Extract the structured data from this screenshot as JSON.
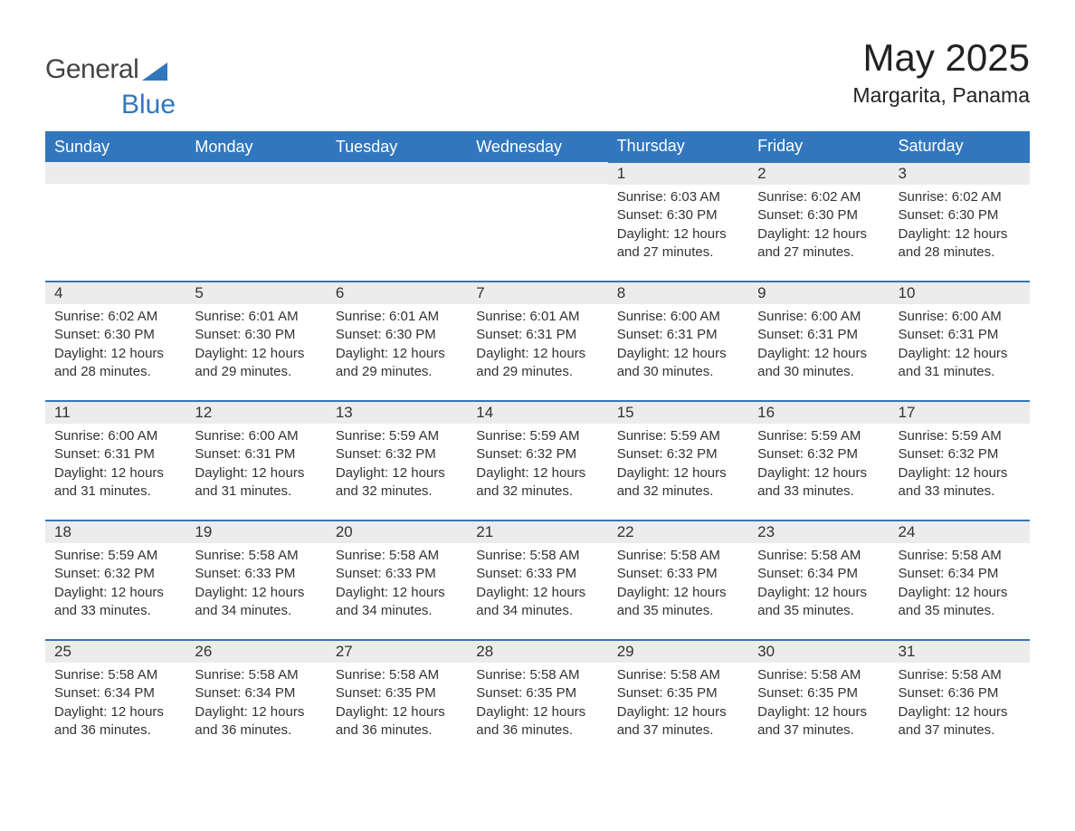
{
  "brand": {
    "text_general": "General",
    "text_blue": "Blue",
    "accent_color": "#3277BD"
  },
  "title": "May 2025",
  "location": "Margarita, Panama",
  "columns": [
    "Sunday",
    "Monday",
    "Tuesday",
    "Wednesday",
    "Thursday",
    "Friday",
    "Saturday"
  ],
  "colors": {
    "header_bg": "#3277BD",
    "header_text": "#ffffff",
    "daynum_bg": "#ECECEC",
    "row_divider": "#3277BD",
    "body_text": "#333333",
    "page_bg": "#ffffff"
  },
  "layout": {
    "leading_blanks": 4
  },
  "days": [
    {
      "n": "1",
      "sunrise": "Sunrise: 6:03 AM",
      "sunset": "Sunset: 6:30 PM",
      "dl1": "Daylight: 12 hours",
      "dl2": "and 27 minutes."
    },
    {
      "n": "2",
      "sunrise": "Sunrise: 6:02 AM",
      "sunset": "Sunset: 6:30 PM",
      "dl1": "Daylight: 12 hours",
      "dl2": "and 27 minutes."
    },
    {
      "n": "3",
      "sunrise": "Sunrise: 6:02 AM",
      "sunset": "Sunset: 6:30 PM",
      "dl1": "Daylight: 12 hours",
      "dl2": "and 28 minutes."
    },
    {
      "n": "4",
      "sunrise": "Sunrise: 6:02 AM",
      "sunset": "Sunset: 6:30 PM",
      "dl1": "Daylight: 12 hours",
      "dl2": "and 28 minutes."
    },
    {
      "n": "5",
      "sunrise": "Sunrise: 6:01 AM",
      "sunset": "Sunset: 6:30 PM",
      "dl1": "Daylight: 12 hours",
      "dl2": "and 29 minutes."
    },
    {
      "n": "6",
      "sunrise": "Sunrise: 6:01 AM",
      "sunset": "Sunset: 6:30 PM",
      "dl1": "Daylight: 12 hours",
      "dl2": "and 29 minutes."
    },
    {
      "n": "7",
      "sunrise": "Sunrise: 6:01 AM",
      "sunset": "Sunset: 6:31 PM",
      "dl1": "Daylight: 12 hours",
      "dl2": "and 29 minutes."
    },
    {
      "n": "8",
      "sunrise": "Sunrise: 6:00 AM",
      "sunset": "Sunset: 6:31 PM",
      "dl1": "Daylight: 12 hours",
      "dl2": "and 30 minutes."
    },
    {
      "n": "9",
      "sunrise": "Sunrise: 6:00 AM",
      "sunset": "Sunset: 6:31 PM",
      "dl1": "Daylight: 12 hours",
      "dl2": "and 30 minutes."
    },
    {
      "n": "10",
      "sunrise": "Sunrise: 6:00 AM",
      "sunset": "Sunset: 6:31 PM",
      "dl1": "Daylight: 12 hours",
      "dl2": "and 31 minutes."
    },
    {
      "n": "11",
      "sunrise": "Sunrise: 6:00 AM",
      "sunset": "Sunset: 6:31 PM",
      "dl1": "Daylight: 12 hours",
      "dl2": "and 31 minutes."
    },
    {
      "n": "12",
      "sunrise": "Sunrise: 6:00 AM",
      "sunset": "Sunset: 6:31 PM",
      "dl1": "Daylight: 12 hours",
      "dl2": "and 31 minutes."
    },
    {
      "n": "13",
      "sunrise": "Sunrise: 5:59 AM",
      "sunset": "Sunset: 6:32 PM",
      "dl1": "Daylight: 12 hours",
      "dl2": "and 32 minutes."
    },
    {
      "n": "14",
      "sunrise": "Sunrise: 5:59 AM",
      "sunset": "Sunset: 6:32 PM",
      "dl1": "Daylight: 12 hours",
      "dl2": "and 32 minutes."
    },
    {
      "n": "15",
      "sunrise": "Sunrise: 5:59 AM",
      "sunset": "Sunset: 6:32 PM",
      "dl1": "Daylight: 12 hours",
      "dl2": "and 32 minutes."
    },
    {
      "n": "16",
      "sunrise": "Sunrise: 5:59 AM",
      "sunset": "Sunset: 6:32 PM",
      "dl1": "Daylight: 12 hours",
      "dl2": "and 33 minutes."
    },
    {
      "n": "17",
      "sunrise": "Sunrise: 5:59 AM",
      "sunset": "Sunset: 6:32 PM",
      "dl1": "Daylight: 12 hours",
      "dl2": "and 33 minutes."
    },
    {
      "n": "18",
      "sunrise": "Sunrise: 5:59 AM",
      "sunset": "Sunset: 6:32 PM",
      "dl1": "Daylight: 12 hours",
      "dl2": "and 33 minutes."
    },
    {
      "n": "19",
      "sunrise": "Sunrise: 5:58 AM",
      "sunset": "Sunset: 6:33 PM",
      "dl1": "Daylight: 12 hours",
      "dl2": "and 34 minutes."
    },
    {
      "n": "20",
      "sunrise": "Sunrise: 5:58 AM",
      "sunset": "Sunset: 6:33 PM",
      "dl1": "Daylight: 12 hours",
      "dl2": "and 34 minutes."
    },
    {
      "n": "21",
      "sunrise": "Sunrise: 5:58 AM",
      "sunset": "Sunset: 6:33 PM",
      "dl1": "Daylight: 12 hours",
      "dl2": "and 34 minutes."
    },
    {
      "n": "22",
      "sunrise": "Sunrise: 5:58 AM",
      "sunset": "Sunset: 6:33 PM",
      "dl1": "Daylight: 12 hours",
      "dl2": "and 35 minutes."
    },
    {
      "n": "23",
      "sunrise": "Sunrise: 5:58 AM",
      "sunset": "Sunset: 6:34 PM",
      "dl1": "Daylight: 12 hours",
      "dl2": "and 35 minutes."
    },
    {
      "n": "24",
      "sunrise": "Sunrise: 5:58 AM",
      "sunset": "Sunset: 6:34 PM",
      "dl1": "Daylight: 12 hours",
      "dl2": "and 35 minutes."
    },
    {
      "n": "25",
      "sunrise": "Sunrise: 5:58 AM",
      "sunset": "Sunset: 6:34 PM",
      "dl1": "Daylight: 12 hours",
      "dl2": "and 36 minutes."
    },
    {
      "n": "26",
      "sunrise": "Sunrise: 5:58 AM",
      "sunset": "Sunset: 6:34 PM",
      "dl1": "Daylight: 12 hours",
      "dl2": "and 36 minutes."
    },
    {
      "n": "27",
      "sunrise": "Sunrise: 5:58 AM",
      "sunset": "Sunset: 6:35 PM",
      "dl1": "Daylight: 12 hours",
      "dl2": "and 36 minutes."
    },
    {
      "n": "28",
      "sunrise": "Sunrise: 5:58 AM",
      "sunset": "Sunset: 6:35 PM",
      "dl1": "Daylight: 12 hours",
      "dl2": "and 36 minutes."
    },
    {
      "n": "29",
      "sunrise": "Sunrise: 5:58 AM",
      "sunset": "Sunset: 6:35 PM",
      "dl1": "Daylight: 12 hours",
      "dl2": "and 37 minutes."
    },
    {
      "n": "30",
      "sunrise": "Sunrise: 5:58 AM",
      "sunset": "Sunset: 6:35 PM",
      "dl1": "Daylight: 12 hours",
      "dl2": "and 37 minutes."
    },
    {
      "n": "31",
      "sunrise": "Sunrise: 5:58 AM",
      "sunset": "Sunset: 6:36 PM",
      "dl1": "Daylight: 12 hours",
      "dl2": "and 37 minutes."
    }
  ]
}
